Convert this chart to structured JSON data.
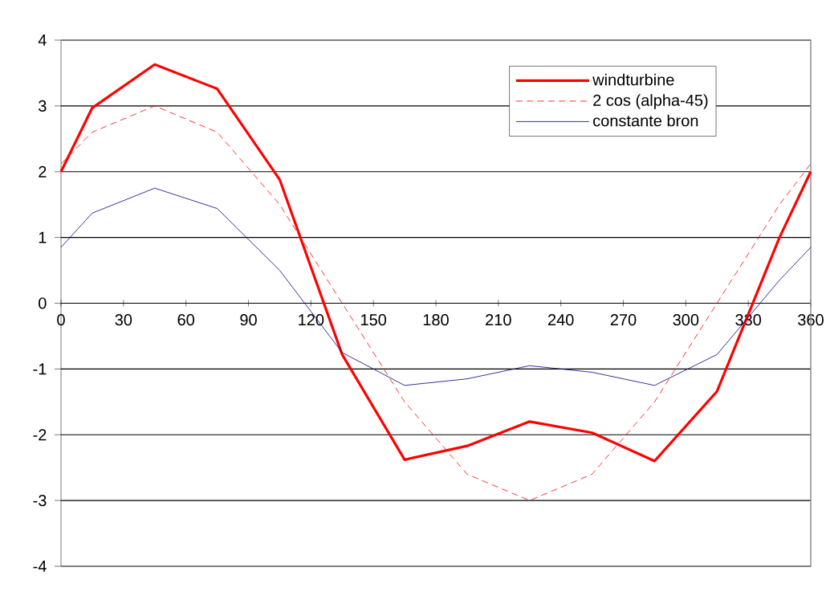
{
  "chart_data": {
    "type": "line",
    "x": [
      0,
      15,
      45,
      75,
      105,
      135,
      165,
      195,
      225,
      255,
      285,
      315,
      345,
      360
    ],
    "series": [
      {
        "name": "windturbine",
        "color": "#ff0000",
        "line_style": "solid",
        "values": [
          2.0,
          2.97,
          3.63,
          3.26,
          1.88,
          -0.78,
          -2.38,
          -2.17,
          -1.8,
          -1.97,
          -2.4,
          -1.34,
          1.0,
          2.0
        ]
      },
      {
        "name": "2 cos (alpha-45)",
        "color": "#ff0000",
        "line_style": "dashed",
        "values": [
          2.12,
          2.6,
          3.0,
          2.6,
          1.5,
          0.0,
          -1.5,
          -2.6,
          -3.0,
          -2.6,
          -1.5,
          0.0,
          1.5,
          2.12
        ]
      },
      {
        "name": "constante bron",
        "color": "#000080",
        "line_style": "solid",
        "values": [
          0.85,
          1.37,
          1.75,
          1.44,
          0.5,
          -0.75,
          -1.25,
          -1.15,
          -0.95,
          -1.05,
          -1.25,
          -0.78,
          0.35,
          0.85
        ]
      }
    ],
    "xlim": [
      0,
      360
    ],
    "ylim": [
      -4,
      4
    ],
    "xticks": [
      0,
      30,
      60,
      90,
      120,
      150,
      180,
      210,
      240,
      270,
      300,
      330,
      360
    ],
    "yticks": [
      -4,
      -3,
      -2,
      -1,
      0,
      1,
      2,
      3,
      4
    ],
    "grid": "y",
    "legend": "top right",
    "marker": "none"
  }
}
